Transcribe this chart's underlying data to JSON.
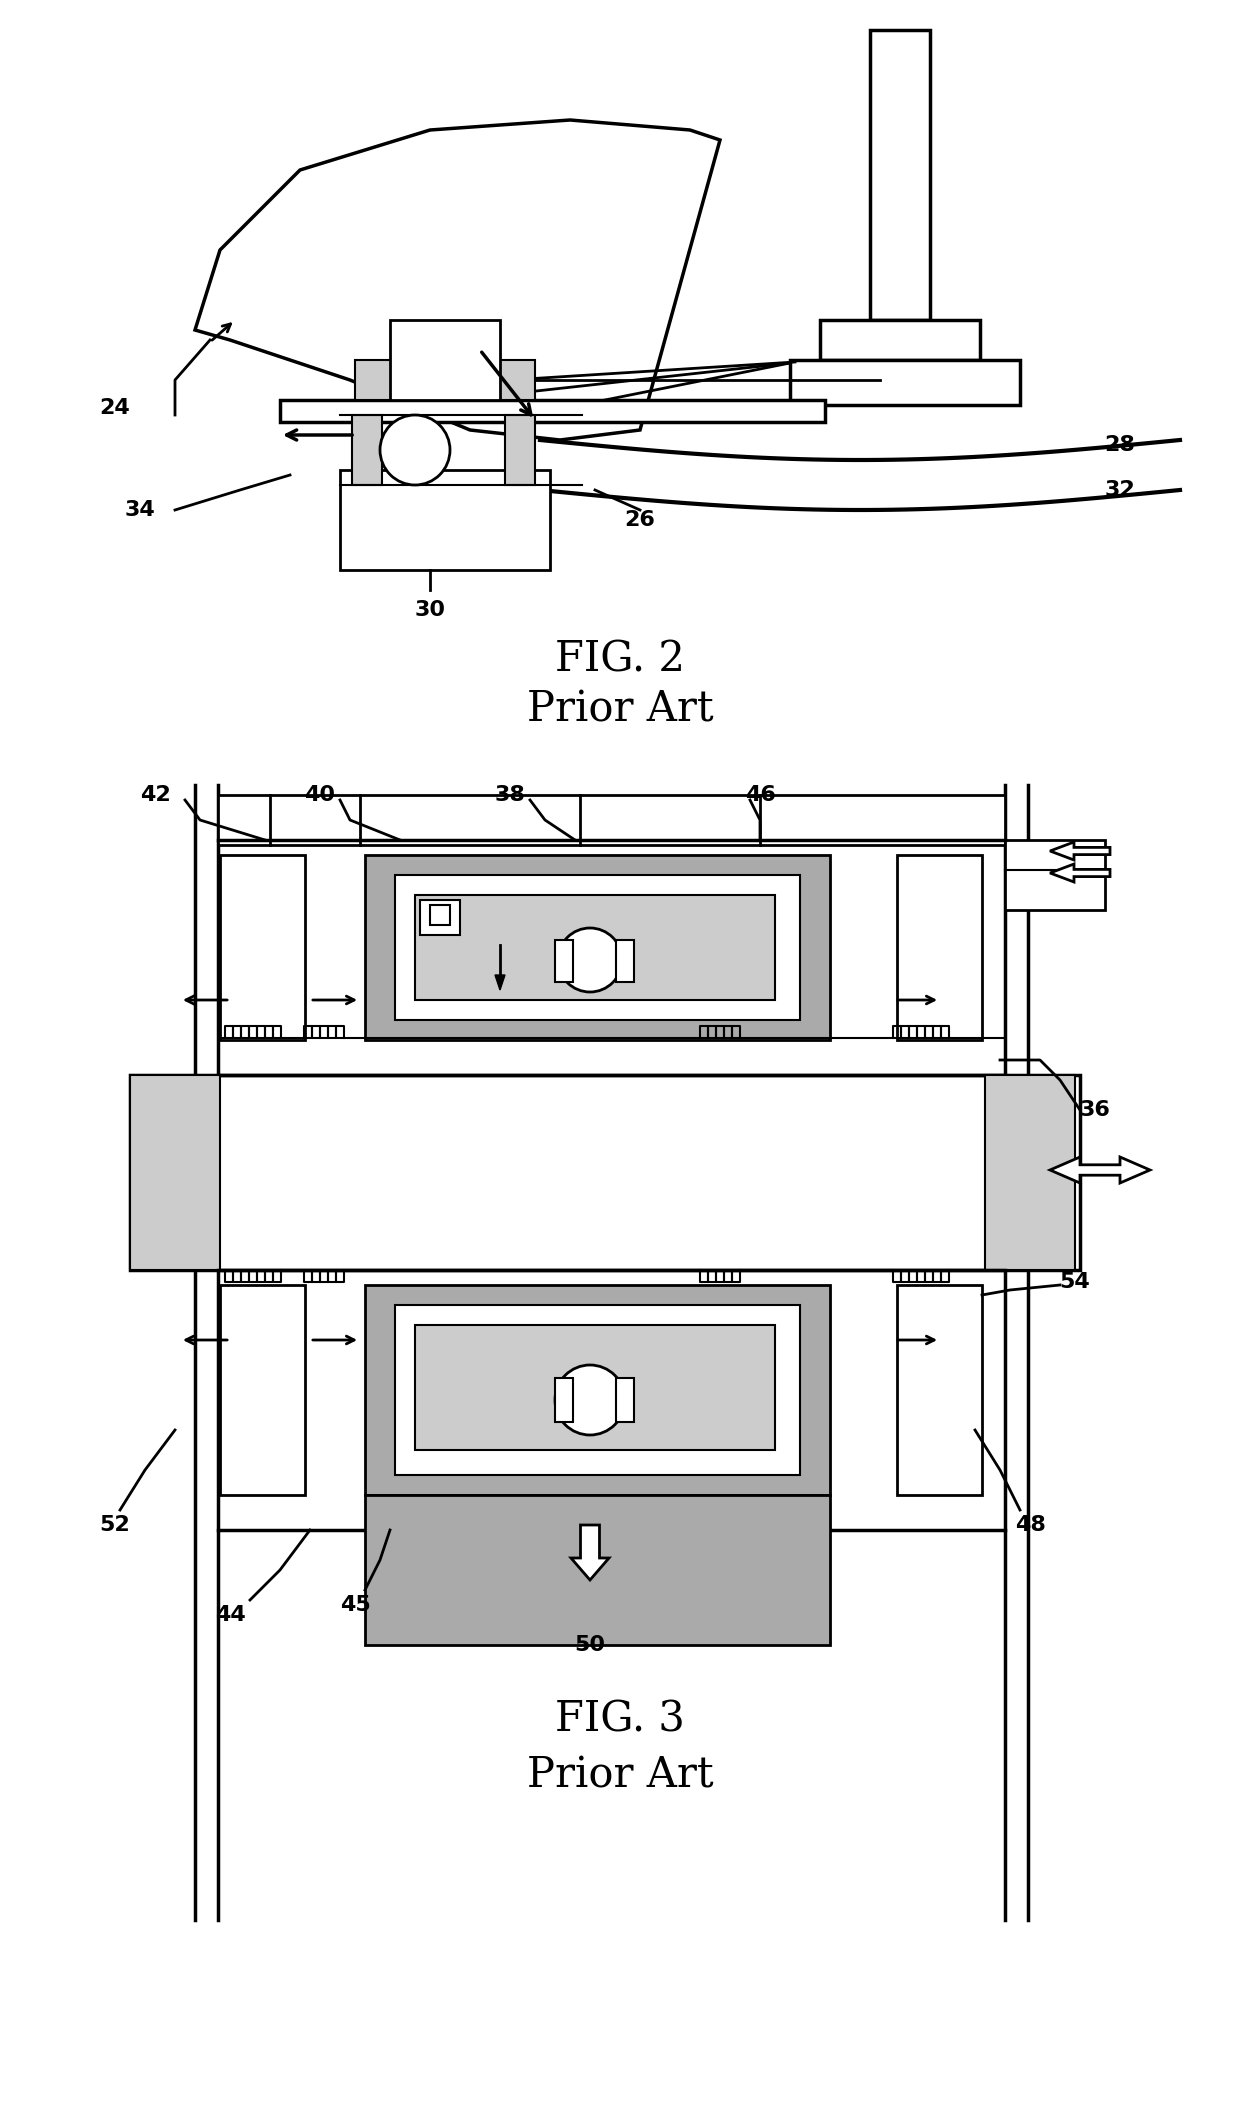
{
  "bg_color": "#ffffff",
  "line_color": "#000000",
  "gray_fill": "#aaaaaa",
  "light_gray": "#cccccc",
  "fig2_title": "FIG. 2",
  "fig2_subtitle": "Prior Art",
  "fig3_title": "FIG. 3",
  "fig3_subtitle": "Prior Art",
  "label_fontsize": 16,
  "title_fontsize": 30,
  "subtitle_fontsize": 30
}
